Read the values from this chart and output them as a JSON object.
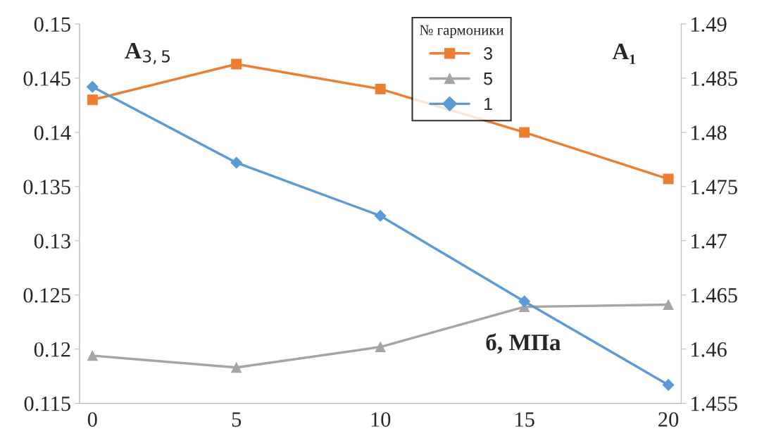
{
  "chart_data": {
    "type": "line",
    "categories": [
      "0",
      "5",
      "10",
      "15",
      "20"
    ],
    "xlabel": "б, МПа",
    "ylabel": "A$_{3,5}$",
    "y2label": "A₁",
    "legend_title": "№ гармоники",
    "legend": "top",
    "grid": false,
    "ylim": [
      0.115,
      0.15
    ],
    "yticks": [
      0.115,
      0.12,
      0.125,
      0.13,
      0.135,
      0.14,
      0.145,
      0.15
    ],
    "y2lim": [
      1.455,
      1.49
    ],
    "y2ticks": [
      1.455,
      1.46,
      1.465,
      1.47,
      1.475,
      1.48,
      1.485,
      1.49
    ],
    "series": [
      {
        "name": "3",
        "color": "#ed7d31",
        "marker": "square",
        "values": [
          0.143,
          0.1463,
          0.144,
          0.14,
          0.1357
        ]
      },
      {
        "name": "5",
        "color": "#a5a5a5",
        "marker": "triangle",
        "values": [
          0.1194,
          0.1183,
          0.1202,
          0.1239,
          0.1241
        ]
      },
      {
        "name": "1",
        "color": "#5b9bd5",
        "marker": "diamond",
        "axis": "y2",
        "values": [
          1.4842,
          1.4772,
          1.4723,
          1.4644,
          1.4567
        ]
      }
    ]
  }
}
